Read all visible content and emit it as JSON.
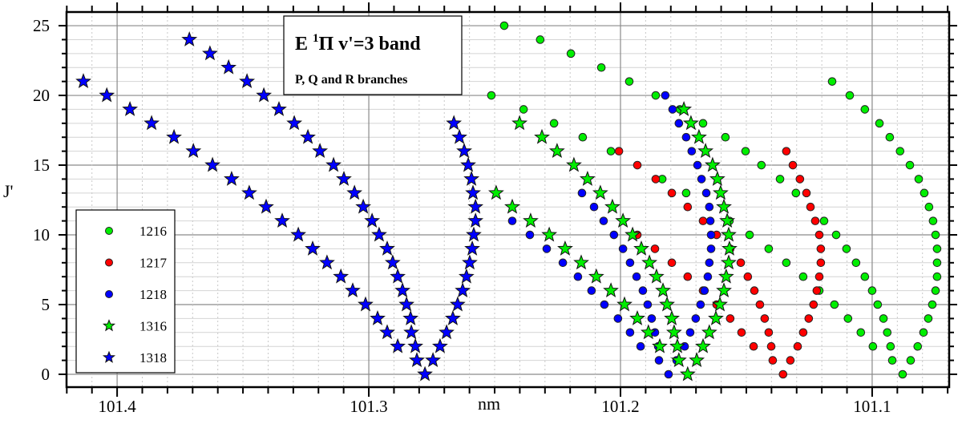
{
  "chart_data": {
    "type": "scatter",
    "title": {
      "prefix": "E ",
      "sup": "1",
      "rest": "Π v'=3 band"
    },
    "subtitle": "P, Q and R branches",
    "xlabel": "nm",
    "ylabel": "J'",
    "xlim": [
      101.4201,
      101.0694
    ],
    "ylim": [
      -0.92,
      25.98
    ],
    "x_reversed": true,
    "x_major_ticks": [
      101.4,
      101.3,
      101.2,
      101.1
    ],
    "x_tick_labels": [
      "101.4",
      "101.3",
      "101.2",
      "101.1"
    ],
    "x_minor_step": 0.01,
    "y_major_ticks": [
      0,
      5,
      10,
      15,
      20,
      25
    ],
    "y_tick_labels": [
      "0",
      "5",
      "10",
      "15",
      "20",
      "25"
    ],
    "y_minor_step": 1,
    "grid": true,
    "legend_position": "bottom-left",
    "series": [
      {
        "name": "1216",
        "marker": "circle",
        "color": "#00ee00",
        "points": [
          [
            101.2462,
            25
          ],
          [
            101.2319,
            24
          ],
          [
            101.2197,
            23
          ],
          [
            101.2076,
            22
          ],
          [
            101.1965,
            21
          ],
          [
            101.186,
            20
          ],
          [
            101.1764,
            19
          ],
          [
            101.1672,
            18
          ],
          [
            101.1583,
            17
          ],
          [
            101.1503,
            16
          ],
          [
            101.144,
            15
          ],
          [
            101.1366,
            14
          ],
          [
            101.1303,
            13
          ],
          [
            101.1191,
            11
          ],
          [
            101.1143,
            10
          ],
          [
            101.1102,
            9
          ],
          [
            101.1064,
            8
          ],
          [
            101.1029,
            7
          ],
          [
            101.1,
            6
          ],
          [
            101.0978,
            5
          ],
          [
            101.0955,
            4
          ],
          [
            101.094,
            3
          ],
          [
            101.0927,
            2
          ],
          [
            101.092,
            1
          ],
          [
            101.2513,
            20
          ],
          [
            101.2385,
            19
          ],
          [
            101.2264,
            18
          ],
          [
            101.215,
            17
          ],
          [
            101.2038,
            16
          ],
          [
            101.1834,
            14
          ],
          [
            101.1739,
            13
          ],
          [
            101.1567,
            11
          ],
          [
            101.1487,
            10
          ],
          [
            101.1411,
            9
          ],
          [
            101.1341,
            8
          ],
          [
            101.1274,
            7
          ],
          [
            101.121,
            6
          ],
          [
            101.115,
            5
          ],
          [
            101.1096,
            4
          ],
          [
            101.1045,
            3
          ],
          [
            101.0997,
            2
          ],
          [
            101.1159,
            21
          ],
          [
            101.1089,
            20
          ],
          [
            101.1029,
            19
          ],
          [
            101.0971,
            18
          ],
          [
            101.093,
            17
          ],
          [
            101.0889,
            16
          ],
          [
            101.085,
            15
          ],
          [
            101.0815,
            14
          ],
          [
            101.0793,
            13
          ],
          [
            101.0774,
            12
          ],
          [
            101.0758,
            11
          ],
          [
            101.0748,
            10
          ],
          [
            101.0742,
            9
          ],
          [
            101.0742,
            8
          ],
          [
            101.0742,
            7
          ],
          [
            101.0748,
            6
          ],
          [
            101.0761,
            5
          ],
          [
            101.0777,
            4
          ],
          [
            101.0796,
            3
          ],
          [
            101.0819,
            2
          ],
          [
            101.0847,
            1
          ],
          [
            101.0879,
            0
          ]
        ]
      },
      {
        "name": "1217",
        "marker": "circle",
        "color": "#ff0000",
        "points": [
          [
            101.2006,
            16
          ],
          [
            101.1933,
            15
          ],
          [
            101.186,
            14
          ],
          [
            101.1796,
            13
          ],
          [
            101.1733,
            12
          ],
          [
            101.1672,
            11
          ],
          [
            101.1618,
            10
          ],
          [
            101.1564,
            9
          ],
          [
            101.1522,
            8
          ],
          [
            101.1494,
            7
          ],
          [
            101.1468,
            6
          ],
          [
            101.1446,
            5
          ],
          [
            101.1427,
            4
          ],
          [
            101.1411,
            3
          ],
          [
            101.1401,
            2
          ],
          [
            101.1395,
            1
          ],
          [
            101.1933,
            10
          ],
          [
            101.1863,
            9
          ],
          [
            101.1796,
            8
          ],
          [
            101.1733,
            7
          ],
          [
            101.1672,
            6
          ],
          [
            101.1618,
            5
          ],
          [
            101.1564,
            4
          ],
          [
            101.1519,
            3
          ],
          [
            101.1471,
            2
          ],
          [
            101.1341,
            16
          ],
          [
            101.1315,
            15
          ],
          [
            101.1287,
            14
          ],
          [
            101.1261,
            13
          ],
          [
            101.1245,
            12
          ],
          [
            101.1226,
            11
          ],
          [
            101.121,
            10
          ],
          [
            101.1204,
            9
          ],
          [
            101.1204,
            8
          ],
          [
            101.121,
            7
          ],
          [
            101.122,
            6
          ],
          [
            101.1233,
            5
          ],
          [
            101.1252,
            4
          ],
          [
            101.1274,
            3
          ],
          [
            101.1296,
            2
          ],
          [
            101.1325,
            1
          ],
          [
            101.1354,
            0
          ]
        ]
      },
      {
        "name": "1218",
        "marker": "circle",
        "color": "#0000ff",
        "points": [
          [
            101.243,
            11
          ],
          [
            101.236,
            10
          ],
          [
            101.2293,
            9
          ],
          [
            101.2229,
            8
          ],
          [
            101.2169,
            7
          ],
          [
            101.2115,
            6
          ],
          [
            101.2064,
            5
          ],
          [
            101.201,
            4
          ],
          [
            101.1962,
            3
          ],
          [
            101.192,
            2
          ],
          [
            101.2153,
            13
          ],
          [
            101.2105,
            12
          ],
          [
            101.2067,
            11
          ],
          [
            101.2026,
            10
          ],
          [
            101.199,
            9
          ],
          [
            101.1962,
            8
          ],
          [
            101.1936,
            7
          ],
          [
            101.1911,
            6
          ],
          [
            101.1892,
            5
          ],
          [
            101.1876,
            4
          ],
          [
            101.1863,
            3
          ],
          [
            101.185,
            2
          ],
          [
            101.1847,
            1
          ],
          [
            101.1822,
            20
          ],
          [
            101.1793,
            19
          ],
          [
            101.1768,
            18
          ],
          [
            101.1739,
            17
          ],
          [
            101.1717,
            16
          ],
          [
            101.1694,
            15
          ],
          [
            101.1678,
            14
          ],
          [
            101.1659,
            13
          ],
          [
            101.1647,
            12
          ],
          [
            101.1643,
            11
          ],
          [
            101.164,
            10
          ],
          [
            101.164,
            9
          ],
          [
            101.1647,
            8
          ],
          [
            101.1653,
            7
          ],
          [
            101.1666,
            6
          ],
          [
            101.1682,
            5
          ],
          [
            101.1701,
            4
          ],
          [
            101.1723,
            3
          ],
          [
            101.1745,
            2
          ],
          [
            101.1777,
            1
          ],
          [
            101.1809,
            0
          ]
        ]
      },
      {
        "name": "1316",
        "marker": "star",
        "color": "#00ee00",
        "points": [
          [
            101.2494,
            13
          ],
          [
            101.243,
            12
          ],
          [
            101.2357,
            11
          ],
          [
            101.2283,
            10
          ],
          [
            101.222,
            9
          ],
          [
            101.2156,
            8
          ],
          [
            101.2096,
            7
          ],
          [
            101.2038,
            6
          ],
          [
            101.1984,
            5
          ],
          [
            101.1933,
            4
          ],
          [
            101.1889,
            3
          ],
          [
            101.1844,
            2
          ],
          [
            101.2401,
            18
          ],
          [
            101.2312,
            17
          ],
          [
            101.2252,
            16
          ],
          [
            101.2185,
            15
          ],
          [
            101.2131,
            14
          ],
          [
            101.208,
            13
          ],
          [
            101.2032,
            12
          ],
          [
            101.199,
            11
          ],
          [
            101.1952,
            10
          ],
          [
            101.1917,
            9
          ],
          [
            101.1885,
            8
          ],
          [
            101.1857,
            7
          ],
          [
            101.1831,
            6
          ],
          [
            101.1815,
            5
          ],
          [
            101.1796,
            4
          ],
          [
            101.1787,
            3
          ],
          [
            101.1774,
            2
          ],
          [
            101.1768,
            1
          ],
          [
            101.1748,
            19
          ],
          [
            101.172,
            18
          ],
          [
            101.1688,
            17
          ],
          [
            101.1662,
            16
          ],
          [
            101.1634,
            15
          ],
          [
            101.1615,
            14
          ],
          [
            101.1602,
            13
          ],
          [
            101.1589,
            12
          ],
          [
            101.1576,
            11
          ],
          [
            101.157,
            10
          ],
          [
            101.1567,
            9
          ],
          [
            101.157,
            8
          ],
          [
            101.158,
            7
          ],
          [
            101.1589,
            6
          ],
          [
            101.1605,
            5
          ],
          [
            101.1621,
            4
          ],
          [
            101.1647,
            3
          ],
          [
            101.1672,
            2
          ],
          [
            101.1697,
            1
          ],
          [
            101.1733,
            0
          ]
        ]
      },
      {
        "name": "1318",
        "marker": "star",
        "color": "#0000ff",
        "points": [
          [
            101.4134,
            21
          ],
          [
            101.4041,
            20
          ],
          [
            101.3949,
            19
          ],
          [
            101.3863,
            18
          ],
          [
            101.3774,
            17
          ],
          [
            101.3697,
            16
          ],
          [
            101.3621,
            15
          ],
          [
            101.3545,
            14
          ],
          [
            101.3475,
            13
          ],
          [
            101.3408,
            12
          ],
          [
            101.3344,
            11
          ],
          [
            101.328,
            10
          ],
          [
            101.3223,
            9
          ],
          [
            101.3166,
            8
          ],
          [
            101.3111,
            7
          ],
          [
            101.3064,
            6
          ],
          [
            101.3013,
            5
          ],
          [
            101.2965,
            4
          ],
          [
            101.2927,
            3
          ],
          [
            101.2885,
            2
          ],
          [
            101.3713,
            24
          ],
          [
            101.3631,
            23
          ],
          [
            101.3557,
            22
          ],
          [
            101.3484,
            21
          ],
          [
            101.3417,
            20
          ],
          [
            101.3357,
            19
          ],
          [
            101.3296,
            18
          ],
          [
            101.3242,
            17
          ],
          [
            101.3194,
            16
          ],
          [
            101.314,
            15
          ],
          [
            101.3099,
            14
          ],
          [
            101.3057,
            13
          ],
          [
            101.3022,
            12
          ],
          [
            101.2987,
            11
          ],
          [
            101.2959,
            10
          ],
          [
            101.2927,
            9
          ],
          [
            101.2905,
            8
          ],
          [
            101.2885,
            7
          ],
          [
            101.2866,
            6
          ],
          [
            101.285,
            5
          ],
          [
            101.2834,
            4
          ],
          [
            101.2831,
            3
          ],
          [
            101.2815,
            2
          ],
          [
            101.2809,
            1
          ],
          [
            101.2777,
            0
          ],
          [
            101.2745,
            1
          ],
          [
            101.2717,
            2
          ],
          [
            101.2691,
            3
          ],
          [
            101.2666,
            4
          ],
          [
            101.2647,
            5
          ],
          [
            101.2627,
            6
          ],
          [
            101.2612,
            7
          ],
          [
            101.2599,
            8
          ],
          [
            101.2589,
            9
          ],
          [
            101.2583,
            10
          ],
          [
            101.2576,
            11
          ],
          [
            101.2576,
            12
          ],
          [
            101.2586,
            13
          ],
          [
            101.2592,
            14
          ],
          [
            101.2605,
            15
          ],
          [
            101.2621,
            16
          ],
          [
            101.264,
            17
          ],
          [
            101.2662,
            18
          ]
        ]
      }
    ]
  }
}
